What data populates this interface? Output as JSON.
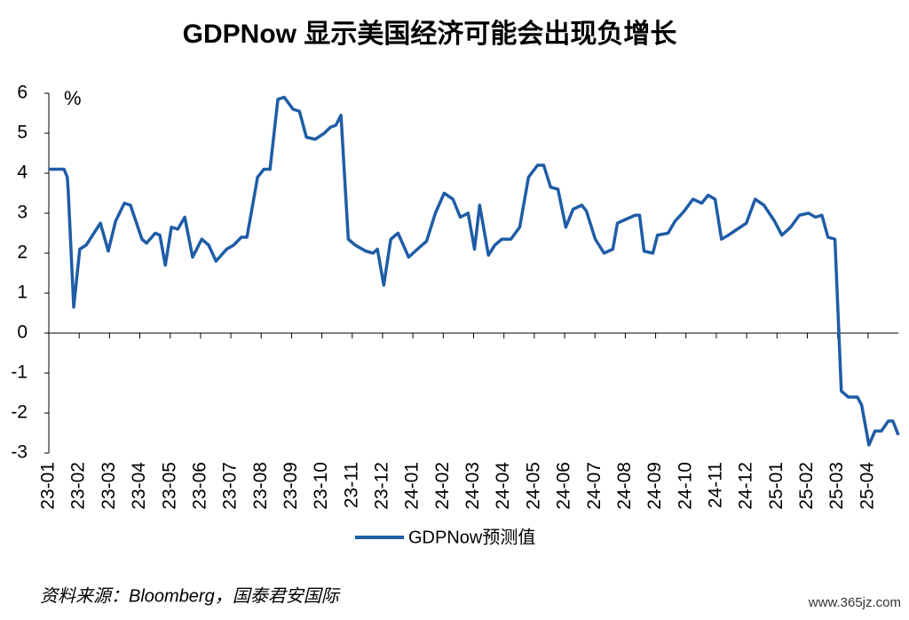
{
  "chart_data": {
    "type": "line",
    "title": "GDPNow 显示美国经济可能会出现负增长",
    "ylabel": "%",
    "source": "资料来源：Bloomberg，国泰君安国际",
    "watermark": "www.365jz.com",
    "xlim": [
      0,
      28
    ],
    "xticks": [
      {
        "value": 0,
        "label": "23-01"
      },
      {
        "value": 1,
        "label": "23-02"
      },
      {
        "value": 2,
        "label": "23-03"
      },
      {
        "value": 3,
        "label": "23-04"
      },
      {
        "value": 4,
        "label": "23-05"
      },
      {
        "value": 5,
        "label": "23-06"
      },
      {
        "value": 6,
        "label": "23-07"
      },
      {
        "value": 7,
        "label": "23-08"
      },
      {
        "value": 8,
        "label": "23-09"
      },
      {
        "value": 9,
        "label": "23-10"
      },
      {
        "value": 10,
        "label": "23-11"
      },
      {
        "value": 11,
        "label": "23-12"
      },
      {
        "value": 12,
        "label": "24-01"
      },
      {
        "value": 13,
        "label": "24-02"
      },
      {
        "value": 14,
        "label": "24-03"
      },
      {
        "value": 15,
        "label": "24-04"
      },
      {
        "value": 16,
        "label": "24-05"
      },
      {
        "value": 17,
        "label": "24-06"
      },
      {
        "value": 18,
        "label": "24-07"
      },
      {
        "value": 19,
        "label": "24-08"
      },
      {
        "value": 20,
        "label": "24-09"
      },
      {
        "value": 21,
        "label": "24-10"
      },
      {
        "value": 22,
        "label": "24-11"
      },
      {
        "value": 23,
        "label": "24-12"
      },
      {
        "value": 24,
        "label": "25-01"
      },
      {
        "value": 25,
        "label": "25-02"
      },
      {
        "value": 26,
        "label": "25-03"
      },
      {
        "value": 27,
        "label": "25-04"
      }
    ],
    "ylim": [
      -3,
      6
    ],
    "yticks": [
      6,
      5,
      4,
      3,
      2,
      1,
      0,
      -1,
      -2,
      -3
    ],
    "series": [
      {
        "name": "GDPNow预测值",
        "color": "#1f5ca6",
        "x": [
          0,
          0.5,
          0.61,
          0.64,
          0.82,
          1.02,
          1.23,
          1.7,
          1.96,
          2.2,
          2.49,
          2.69,
          3.07,
          3.22,
          3.51,
          3.66,
          3.84,
          4.04,
          4.25,
          4.48,
          4.74,
          5.04,
          5.27,
          5.51,
          5.86,
          6.09,
          6.35,
          6.53,
          6.88,
          7.09,
          7.29,
          7.55,
          7.76,
          8.05,
          8.26,
          8.49,
          8.78,
          9.08,
          9.28,
          9.46,
          9.63,
          9.87,
          10.1,
          10.45,
          10.69,
          10.83,
          11.04,
          11.27,
          11.51,
          11.86,
          12.15,
          12.45,
          12.74,
          13.03,
          13.32,
          13.56,
          13.82,
          14.03,
          14.2,
          14.49,
          14.7,
          14.93,
          15.23,
          15.52,
          15.81,
          16.11,
          16.31,
          16.54,
          16.78,
          17.04,
          17.28,
          17.57,
          17.72,
          18.01,
          18.3,
          18.59,
          18.74,
          19.03,
          19.33,
          19.47,
          19.62,
          19.91,
          20.06,
          20.41,
          20.64,
          20.94,
          21.23,
          21.52,
          21.73,
          21.96,
          22.17,
          22.4,
          22.69,
          22.99,
          23.28,
          23.57,
          23.92,
          24.16,
          24.45,
          24.74,
          25.04,
          25.27,
          25.48,
          25.68,
          25.91,
          26.12,
          26.35,
          26.65,
          26.79,
          27.03,
          27.23,
          27.44,
          27.67,
          27.82,
          28.0
        ],
        "values": [
          4.1,
          4.1,
          3.9,
          3.55,
          0.65,
          2.1,
          2.2,
          2.75,
          2.05,
          2.8,
          3.25,
          3.2,
          2.35,
          2.25,
          2.5,
          2.45,
          1.7,
          2.65,
          2.6,
          2.9,
          1.9,
          2.35,
          2.2,
          1.8,
          2.1,
          2.2,
          2.4,
          2.4,
          3.9,
          4.1,
          4.1,
          5.85,
          5.9,
          5.6,
          5.55,
          4.9,
          4.85,
          5.0,
          5.15,
          5.2,
          5.45,
          2.35,
          2.2,
          2.05,
          2.0,
          2.1,
          1.2,
          2.35,
          2.5,
          1.9,
          2.1,
          2.3,
          3.0,
          3.5,
          3.35,
          2.9,
          3.0,
          2.1,
          3.2,
          1.95,
          2.2,
          2.35,
          2.35,
          2.65,
          3.9,
          4.2,
          4.2,
          3.65,
          3.6,
          2.65,
          3.1,
          3.2,
          3.05,
          2.35,
          2.0,
          2.1,
          2.75,
          2.85,
          2.95,
          2.95,
          2.05,
          2.0,
          2.45,
          2.5,
          2.8,
          3.05,
          3.35,
          3.25,
          3.45,
          3.35,
          2.35,
          2.45,
          2.6,
          2.75,
          3.35,
          3.2,
          2.8,
          2.45,
          2.65,
          2.95,
          3.0,
          2.9,
          2.95,
          2.4,
          2.35,
          -1.45,
          -1.6,
          -1.6,
          -1.8,
          -2.8,
          -2.45,
          -2.45,
          -2.2,
          -2.2,
          -2.55
        ]
      }
    ]
  }
}
